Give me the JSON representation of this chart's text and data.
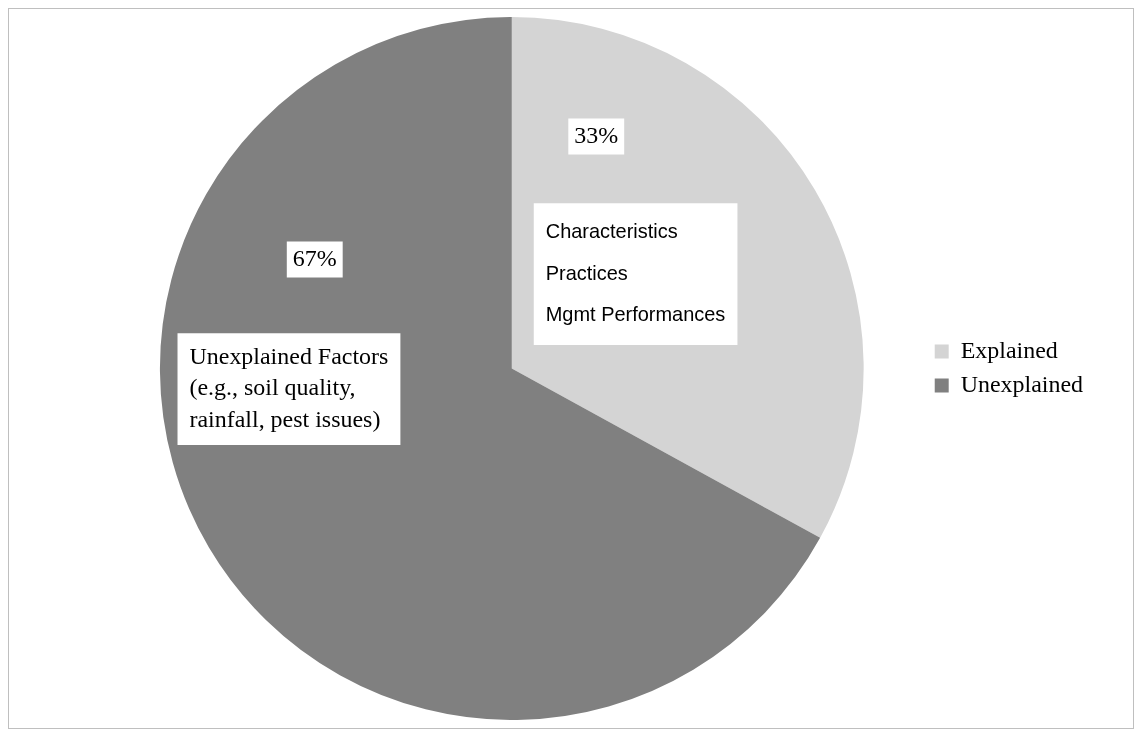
{
  "chart_data": {
    "type": "pie",
    "categories": [
      "Explained",
      "Unexplained"
    ],
    "values": [
      33,
      67
    ],
    "colors": [
      "#d4d4d4",
      "#808080"
    ],
    "value_labels": [
      "33%",
      "67%"
    ],
    "legend": "right",
    "annotations": [
      "Characteristics\nPractices\nMgmt Performances",
      "Unexplained Factors\n(e.g., soil quality,\nrainfall, pest issues)"
    ]
  }
}
